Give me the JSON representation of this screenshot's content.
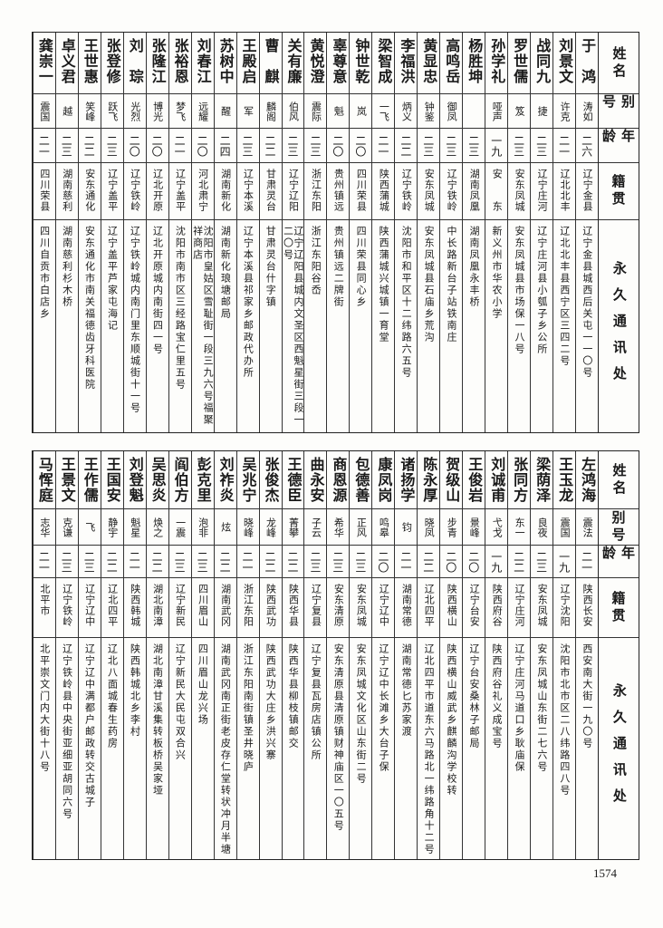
{
  "top_table": {
    "header": {
      "name": "姓名",
      "alias": "别号",
      "age": "年龄",
      "origin": "籍贯",
      "address": "永久通讯处"
    },
    "rows": [
      {
        "name": "于　鸿",
        "alias": "涛如",
        "age": "二六",
        "origin": "辽宁金县",
        "address": "辽宁金县城西后关屯一一〇号"
      },
      {
        "name": "刘景文",
        "alias": "许克",
        "age": "二一",
        "origin": "辽北北丰",
        "address": "辽北北丰县西宁区三四二号"
      },
      {
        "name": "战同九",
        "alias": "捷",
        "age": "二三",
        "origin": "辽宁庄河",
        "address": "辽宁庄河县小瓠子乡公所"
      },
      {
        "name": "罗世儒",
        "alias": "笈",
        "age": "二三",
        "origin": "安东凤城",
        "address": "安东凤城县市场保一八号"
      },
      {
        "name": "孙学礼",
        "alias": "哑声",
        "age": "一九",
        "origin": "安　　东",
        "address": "新义州市华农小学"
      },
      {
        "name": "杨胜坤",
        "alias": "",
        "age": "二三",
        "origin": "湖南凤凰",
        "address": "湖南凤凰永丰桥"
      },
      {
        "name": "高鸣岳",
        "alias": "御凤",
        "age": "二三",
        "origin": "辽宁铁岭",
        "address": "中长路新台子站铁南庄"
      },
      {
        "name": "黄显忠",
        "alias": "钟鉴",
        "age": "二三",
        "origin": "安东凤城",
        "address": "安东凤城县石庙乡荒沟"
      },
      {
        "name": "李福洪",
        "alias": "炳义",
        "age": "二二",
        "origin": "辽宁铁岭",
        "address": "沈阳市和平区十二纬路六五号"
      },
      {
        "name": "梁智成",
        "alias": "一飞",
        "age": "二一",
        "origin": "陕西蒲城",
        "address": "陕西蒲城兴城镇一育堂"
      },
      {
        "name": "钟世乾",
        "alias": "岚",
        "age": "二〇",
        "origin": "四川荣县",
        "address": "四川荣县同心乡"
      },
      {
        "name": "辜尊意",
        "alias": "魁",
        "age": "二〇",
        "origin": "贵州镇远",
        "address": "贵州镇远二牌街"
      },
      {
        "name": "黄悦澄",
        "alias": "震际",
        "age": "二三",
        "origin": "浙江东阳",
        "address": "浙江东阳谷岙"
      },
      {
        "name": "关有廉",
        "alias": "伯风",
        "age": "二三",
        "origin": "辽宁辽阳",
        "address": "辽宁辽阳县城内文圣区西魁星街三段一二〇号"
      },
      {
        "name": "曹　麒",
        "alias": "麟阁",
        "age": "二二",
        "origin": "甘肃灵台",
        "address": "甘肃灵台什字镇"
      },
      {
        "name": "王殿启",
        "alias": "军",
        "age": "二三",
        "origin": "辽宁本溪",
        "address": "辽宁本溪县祁家乡邮政代办所"
      },
      {
        "name": "苏树中",
        "alias": "醒",
        "age": "二四",
        "origin": "湖南新化",
        "address": "湖南新化琅塘邮局"
      },
      {
        "name": "刘春江",
        "alias": "远耀",
        "age": "二〇",
        "origin": "河北肃宁",
        "address": "沈阳市皇姑区雪耻街一段三九六号福聚祥商店"
      },
      {
        "name": "张裕恩",
        "alias": "梦飞",
        "age": "二一",
        "origin": "辽宁盖平",
        "address": "沈阳市南市区三经路宝仁里五号"
      },
      {
        "name": "张隆江",
        "alias": "博光",
        "age": "二〇",
        "origin": "辽北开原",
        "address": "辽北开原城内南街四一号"
      },
      {
        "name": "刘　琮",
        "alias": "光烈",
        "age": "二〇",
        "origin": "辽宁铁岭",
        "address": "辽宁铁岭城内南门里东顺城街十一号"
      },
      {
        "name": "张登修",
        "alias": "跃飞",
        "age": "二三",
        "origin": "辽宁盖平",
        "address": "辽宁盖平芦家屯海记"
      },
      {
        "name": "王世惠",
        "alias": "笑峰",
        "age": "二二",
        "origin": "安东通化",
        "address": "安东通化市南关福德齿牙科医院"
      },
      {
        "name": "卓义君",
        "alias": "越",
        "age": "二三",
        "origin": "湖南慈利",
        "address": "湖南慈利杉木桥"
      },
      {
        "name": "龚崇一",
        "alias": "震国",
        "age": "二一",
        "origin": "四川荣县",
        "address": "四川自贡市白店乡"
      }
    ]
  },
  "bottom_table": {
    "header": {
      "name": "姓名",
      "alias": "别号",
      "age": "年龄",
      "origin": "籍贯",
      "address": "永久通讯处"
    },
    "rows": [
      {
        "name": "左鸿海",
        "alias": "震法",
        "age": "二一",
        "origin": "陕西长安",
        "address": "西安南大街一九〇号"
      },
      {
        "name": "王玉龙",
        "alias": "震国",
        "age": "一九",
        "origin": "辽宁沈阳",
        "address": "沈阳市北市区二八纬路四八号"
      },
      {
        "name": "梁荫泽",
        "alias": "良夜",
        "age": "二三",
        "origin": "安东凤城",
        "address": "安东凤城山东街二七六号"
      },
      {
        "name": "张同方",
        "alias": "东一",
        "age": "二二",
        "origin": "辽宁庄河",
        "address": "辽宁庄河马道口乡耿庙保"
      },
      {
        "name": "刘诚甫",
        "alias": "弋戈",
        "age": "一九",
        "origin": "陕西府谷",
        "address": "陕西府谷礼义成宝号"
      },
      {
        "name": "王俊岩",
        "alias": "景峰",
        "age": "二〇",
        "origin": "辽宁台安",
        "address": "辽宁台安桑林子邮局"
      },
      {
        "name": "贺级山",
        "alias": "步青",
        "age": "二〇",
        "origin": "陕西横山",
        "address": "陕西横山威武乡麒麟沟学校转"
      },
      {
        "name": "陈永厚",
        "alias": "晓凤",
        "age": "二二",
        "origin": "辽北四平",
        "address": "辽北四平市道东六马路北一纬路角十二号"
      },
      {
        "name": "诸扬学",
        "alias": "钧",
        "age": "二一",
        "origin": "湖南常德",
        "address": "湖南常德匕苏家渡"
      },
      {
        "name": "康凤岗",
        "alias": "鸣皋",
        "age": "二〇",
        "origin": "辽宁辽中",
        "address": "辽宁辽中长滩乡大台子保"
      },
      {
        "name": "包德善",
        "alias": "正风",
        "age": "二三",
        "origin": "安东凤城",
        "address": "安东凤城文化区山东街二号"
      },
      {
        "name": "商恩源",
        "alias": "希华",
        "age": "二三",
        "origin": "安东清原",
        "address": "安东清原县清原镇财神庙区一〇五号"
      },
      {
        "name": "曲永安",
        "alias": "子云",
        "age": "二三",
        "origin": "辽宁复县",
        "address": "辽宁复县瓦房店镇公所"
      },
      {
        "name": "王德臣",
        "alias": "菁攀",
        "age": "二二",
        "origin": "陕西华县",
        "address": "陕西华县柳枝镇邮交"
      },
      {
        "name": "张俊杰",
        "alias": "龙峰",
        "age": "二二",
        "origin": "陕西武功",
        "address": "陕西武功大庄乡洪兴寨"
      },
      {
        "name": "吴兆宁",
        "alias": "晓峰",
        "age": "二一",
        "origin": "浙江东阳",
        "address": "浙江东阳南街镇圣井晓庐"
      },
      {
        "name": "刘祚炎",
        "alias": "炫",
        "age": "二二",
        "origin": "湖南武冈",
        "address": "湖南武冈南正街老皮存仁堂转状冲月半塘"
      },
      {
        "name": "彭克里",
        "alias": "泡非",
        "age": "二三",
        "origin": "四川眉山",
        "address": "四川眉山龙兴场"
      },
      {
        "name": "阎伯方",
        "alias": "一震",
        "age": "二三",
        "origin": "辽宁新民",
        "address": "辽宁新民大民屯双合兴"
      },
      {
        "name": "吴思炎",
        "alias": "焕之",
        "age": "二二",
        "origin": "湖北南漳",
        "address": "湖北南漳甘溪集转板桥吴家垭"
      },
      {
        "name": "刘登魁",
        "alias": "魁星",
        "age": "二一",
        "origin": "陕西韩城",
        "address": "陕西韩城北乡李村"
      },
      {
        "name": "王国安",
        "alias": "静宇",
        "age": "二二",
        "origin": "辽北四平",
        "address": "辽北八面城春生药房"
      },
      {
        "name": "王作儒",
        "alias": "飞",
        "age": "二三",
        "origin": "辽宁辽中",
        "address": "辽宁辽中满都户邮政转交古城子"
      },
      {
        "name": "王景文",
        "alias": "克谦",
        "age": "二三",
        "origin": "辽宁铁岭",
        "address": "辽宁铁岭县中央街亚细亚胡同六号"
      },
      {
        "name": "马恽庭",
        "alias": "志华",
        "age": "二一",
        "origin": "北平市",
        "address": "北平崇文门内大街十八号"
      }
    ]
  },
  "page_number": "1574"
}
